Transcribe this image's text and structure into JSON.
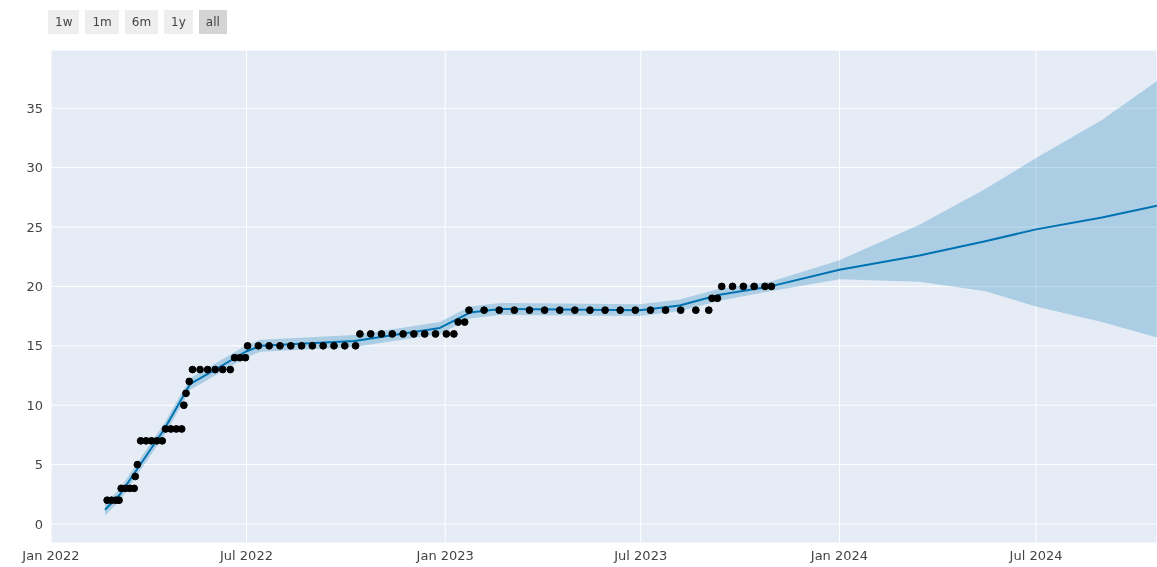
{
  "chart_data": {
    "type": "line",
    "annotations": [
      "1w",
      "1m",
      "6m",
      "1y",
      "all"
    ],
    "xlim": [
      "2022-01-01",
      "2024-10-21"
    ],
    "ylim": [
      -1.6,
      39.9
    ],
    "xticks": [
      {
        "value": "2022-01-01",
        "label": "Jan 2022"
      },
      {
        "value": "2022-07-01",
        "label": "Jul 2022"
      },
      {
        "value": "2023-01-01",
        "label": "Jan 2023"
      },
      {
        "value": "2023-07-01",
        "label": "Jul 2023"
      },
      {
        "value": "2024-01-01",
        "label": "Jan 2024"
      },
      {
        "value": "2024-07-01",
        "label": "Jul 2024"
      }
    ],
    "yticks": [
      0,
      5,
      10,
      15,
      20,
      25,
      30,
      35
    ],
    "grid": true,
    "series": [
      {
        "type": "scatter",
        "color": "#000000",
        "marker": "circle",
        "x": [
          "2022-02-22",
          "2022-02-26",
          "2022-03-02",
          "2022-03-05",
          "2022-03-07",
          "2022-03-11",
          "2022-03-15",
          "2022-03-19",
          "2022-03-20",
          "2022-03-22",
          "2022-03-25",
          "2022-03-30",
          "2022-04-04",
          "2022-04-09",
          "2022-04-14",
          "2022-04-17",
          "2022-04-22",
          "2022-04-27",
          "2022-05-02",
          "2022-05-04",
          "2022-05-06",
          "2022-05-09",
          "2022-05-12",
          "2022-05-19",
          "2022-05-26",
          "2022-06-02",
          "2022-06-09",
          "2022-06-16",
          "2022-06-20",
          "2022-06-25",
          "2022-06-30",
          "2022-07-02",
          "2022-07-12",
          "2022-07-22",
          "2022-08-01",
          "2022-08-11",
          "2022-08-21",
          "2022-08-31",
          "2022-09-10",
          "2022-09-20",
          "2022-09-30",
          "2022-10-10",
          "2022-10-14",
          "2022-10-24",
          "2022-11-03",
          "2022-11-13",
          "2022-11-23",
          "2022-12-03",
          "2022-12-13",
          "2022-12-23",
          "2023-01-02",
          "2023-01-09",
          "2023-01-13",
          "2023-01-19",
          "2023-01-23",
          "2023-02-06",
          "2023-02-20",
          "2023-03-06",
          "2023-03-20",
          "2023-04-03",
          "2023-04-17",
          "2023-05-01",
          "2023-05-15",
          "2023-05-29",
          "2023-06-12",
          "2023-06-26",
          "2023-07-10",
          "2023-07-24",
          "2023-08-07",
          "2023-08-21",
          "2023-09-02",
          "2023-09-05",
          "2023-09-10",
          "2023-09-14",
          "2023-09-24",
          "2023-10-04",
          "2023-10-14",
          "2023-10-24",
          "2023-10-30"
        ],
        "values": [
          2,
          2,
          2,
          2,
          3,
          3,
          3,
          3,
          4,
          5,
          7,
          7,
          7,
          7,
          7,
          8,
          8,
          8,
          8,
          10,
          11,
          12,
          13,
          13,
          13,
          13,
          13,
          13,
          14,
          14,
          14,
          15,
          15,
          15,
          15,
          15,
          15,
          15,
          15,
          15,
          15,
          15,
          16,
          16,
          16,
          16,
          16,
          16,
          16,
          16,
          16,
          16,
          17,
          17,
          18,
          18,
          18,
          18,
          18,
          18,
          18,
          18,
          18,
          18,
          18,
          18,
          18,
          18,
          18,
          18,
          18,
          19,
          19,
          20,
          20,
          20,
          20,
          20,
          20
        ]
      },
      {
        "type": "line",
        "color": "#0072b2",
        "x": [
          "2022-02-20",
          "2022-03-06",
          "2022-04-16",
          "2022-05-10",
          "2022-06-02",
          "2022-06-30",
          "2022-07-14",
          "2022-10-09",
          "2022-12-27",
          "2023-01-24",
          "2023-02-21",
          "2023-06-30",
          "2023-08-06",
          "2023-09-12",
          "2023-10-29",
          "2024-01-01",
          "2024-03-15",
          "2024-05-15",
          "2024-07-01",
          "2024-08-31",
          "2024-10-21"
        ],
        "values": [
          1.2,
          2.5,
          8,
          11.8,
          13,
          14.5,
          15,
          15.4,
          16.5,
          17.8,
          18.1,
          18,
          18.4,
          19.3,
          20,
          21.4,
          22.6,
          23.8,
          24.8,
          25.8,
          26.8
        ],
        "lower": [
          0.7,
          2,
          7.5,
          11.3,
          12.5,
          14,
          14.5,
          14.9,
          16,
          17.3,
          17.6,
          17.5,
          17.9,
          18.8,
          19.6,
          20.6,
          20.4,
          19.6,
          18.3,
          17,
          15.7
        ],
        "upper": [
          1.7,
          3,
          8.5,
          12.3,
          13.5,
          15,
          15.5,
          15.9,
          17,
          18.3,
          18.6,
          18.5,
          18.9,
          19.8,
          20.4,
          22.2,
          25.2,
          28.2,
          30.8,
          34,
          37.3
        ]
      }
    ]
  }
}
